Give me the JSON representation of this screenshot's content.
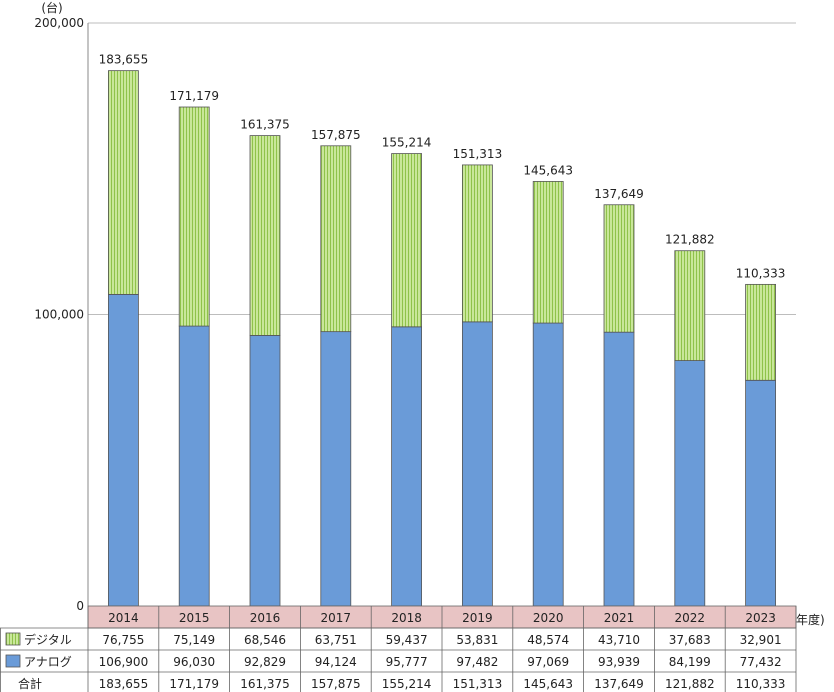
{
  "chart_data": {
    "type": "bar",
    "stacked": true,
    "y_unit": "(台)",
    "x_unit": "(年度)",
    "ylim": [
      0,
      200000
    ],
    "yticks": [
      "0",
      "100,000",
      "200,000"
    ],
    "grid": true,
    "categories": [
      "2014",
      "2015",
      "2016",
      "2017",
      "2018",
      "2019",
      "2020",
      "2021",
      "2022",
      "2023"
    ],
    "series": [
      {
        "name": "アナログ",
        "color": "#6a9bd8",
        "values": [
          106900,
          96030,
          92829,
          94124,
          95777,
          97482,
          97069,
          93939,
          84199,
          77432
        ],
        "display": [
          "106,900",
          "96,030",
          "92,829",
          "94,124",
          "95,777",
          "97,482",
          "97,069",
          "93,939",
          "84,199",
          "77,432"
        ]
      },
      {
        "name": "デジタル",
        "color": "#a8d36a",
        "values": [
          76755,
          75149,
          68546,
          63751,
          59437,
          53831,
          48574,
          43710,
          37683,
          32901
        ],
        "display": [
          "76,755",
          "75,149",
          "68,546",
          "63,751",
          "59,437",
          "53,831",
          "48,574",
          "43,710",
          "37,683",
          "32,901"
        ]
      }
    ],
    "totals_label": "合計",
    "totals": [
      "183,655",
      "171,179",
      "161,375",
      "157,875",
      "155,214",
      "151,313",
      "145,643",
      "137,649",
      "121,882",
      "110,333"
    ],
    "table_row_order": [
      1,
      0
    ]
  }
}
